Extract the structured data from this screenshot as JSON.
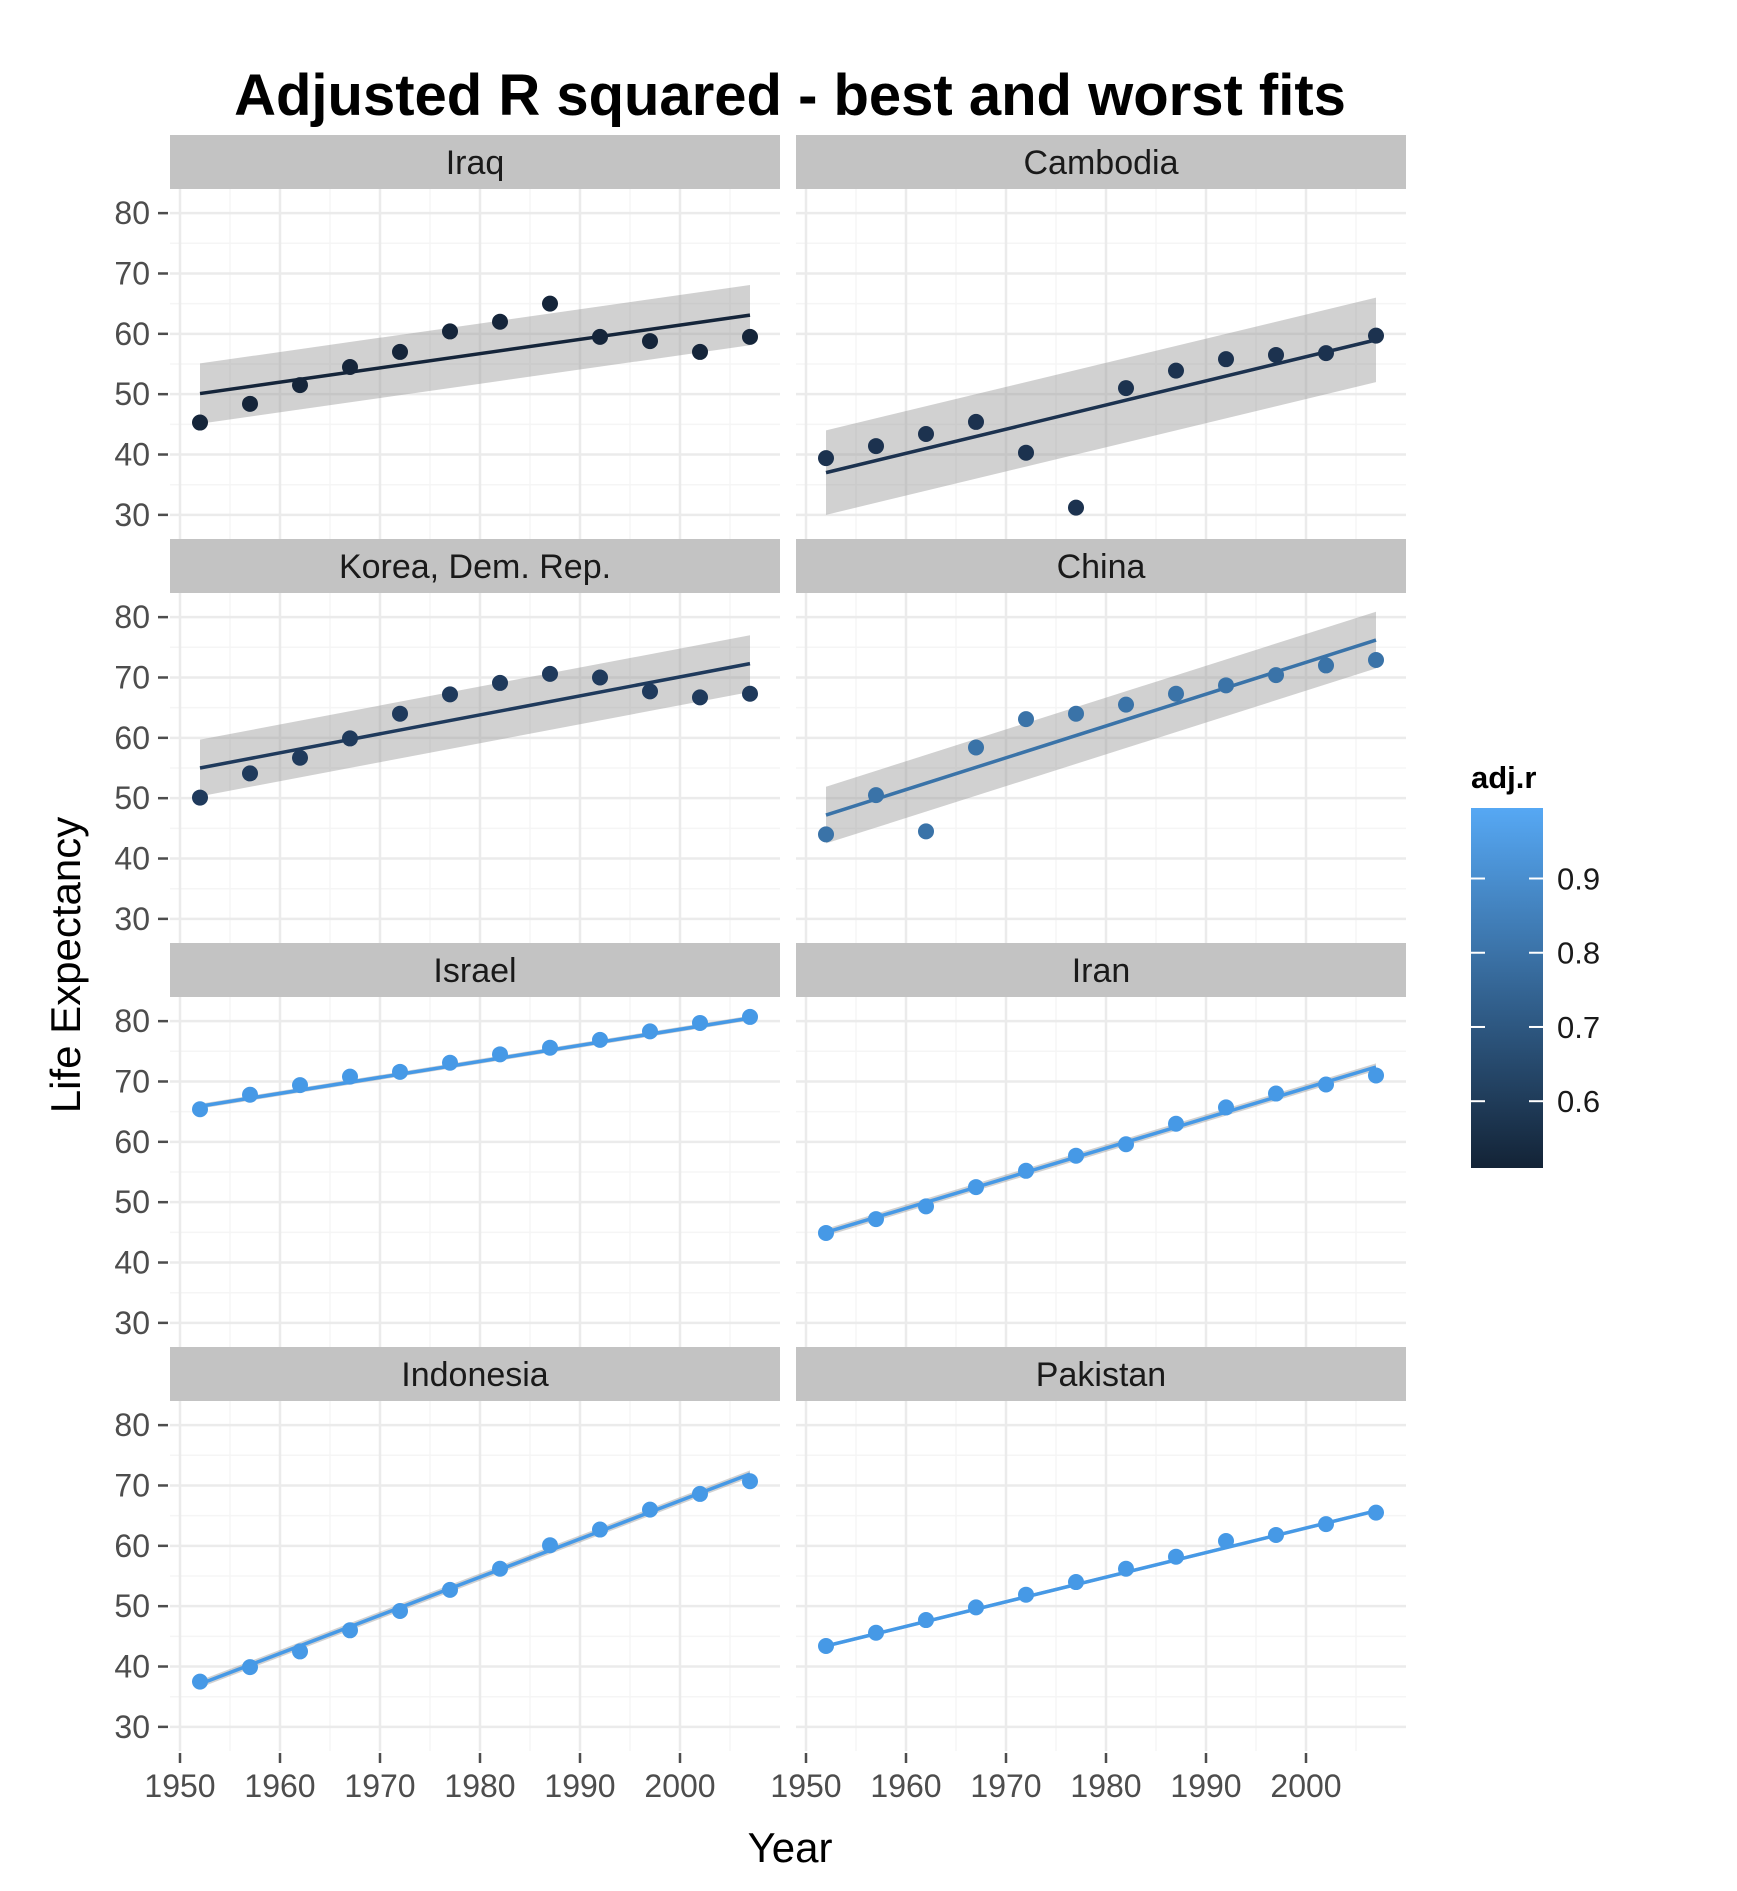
{
  "chart_data": {
    "type": "scatter",
    "title": "Adjusted R squared - best and worst fits",
    "xlabel": "Year",
    "ylabel": "Life Expectancy",
    "xlim": [
      1949,
      2010
    ],
    "ylim": [
      26,
      84
    ],
    "x_ticks": [
      1950,
      1960,
      1970,
      1980,
      1990,
      2000
    ],
    "y_ticks": [
      30,
      40,
      50,
      60,
      70,
      80
    ],
    "grid": true,
    "facets": "4 rows x 2 columns",
    "overlays": [
      "linear fit line",
      "confidence band"
    ],
    "x": [
      1952,
      1957,
      1962,
      1967,
      1972,
      1977,
      1982,
      1987,
      1992,
      1997,
      2002,
      2007
    ],
    "series": [
      {
        "name": "Iraq",
        "adj_r": 0.55,
        "color": "#15253a",
        "values": [
          45.3,
          48.4,
          51.5,
          54.5,
          57.0,
          60.4,
          62.0,
          65.0,
          59.5,
          58.8,
          57.0,
          59.5
        ],
        "fit": [
          50.1,
          63.1
        ],
        "band": [
          [
            55.1,
            45.1
          ],
          [
            68.1,
            58.1
          ]
        ]
      },
      {
        "name": "Cambodia",
        "adj_r": 0.6,
        "color": "#1c324f",
        "values": [
          39.4,
          41.4,
          43.4,
          45.4,
          40.3,
          31.2,
          51.0,
          53.9,
          55.8,
          56.5,
          56.8,
          59.7
        ],
        "fit": [
          37.0,
          59.0
        ],
        "band": [
          [
            44.0,
            30.0
          ],
          [
            66.0,
            52.0
          ]
        ]
      },
      {
        "name": "Korea, Dem. Rep.",
        "adj_r": 0.65,
        "color": "#1f3a5c",
        "values": [
          50.1,
          54.1,
          56.7,
          59.9,
          64.0,
          67.2,
          69.1,
          70.6,
          70.0,
          67.7,
          66.7,
          67.3
        ],
        "fit": [
          55.0,
          72.3
        ],
        "band": [
          [
            59.7,
            50.3
          ],
          [
            77.0,
            67.6
          ]
        ]
      },
      {
        "name": "China",
        "adj_r": 0.8,
        "color": "#3a73a8",
        "values": [
          44.0,
          50.5,
          44.5,
          58.4,
          63.1,
          64.0,
          65.5,
          67.3,
          68.7,
          70.4,
          72.0,
          72.9
        ],
        "fit": [
          47.2,
          76.2
        ],
        "band": [
          [
            51.9,
            42.5
          ],
          [
            80.9,
            71.5
          ]
        ]
      },
      {
        "name": "Israel",
        "adj_r": 0.99,
        "color": "#4699e6",
        "values": [
          65.4,
          67.8,
          69.4,
          70.8,
          71.6,
          73.1,
          74.5,
          75.6,
          76.9,
          78.3,
          79.7,
          80.7
        ],
        "fit": [
          65.9,
          80.5
        ],
        "band": [
          [
            66.3,
            65.5
          ],
          [
            80.9,
            80.1
          ]
        ]
      },
      {
        "name": "Iran",
        "adj_r": 0.99,
        "color": "#4699e6",
        "values": [
          44.9,
          47.2,
          49.3,
          52.5,
          55.2,
          57.7,
          59.6,
          63.0,
          65.7,
          68.0,
          69.5,
          71.0
        ],
        "fit": [
          45.0,
          72.4
        ],
        "band": [
          [
            45.6,
            44.4
          ],
          [
            73.0,
            71.8
          ]
        ]
      },
      {
        "name": "Indonesia",
        "adj_r": 0.99,
        "color": "#4699e6",
        "values": [
          37.5,
          39.9,
          42.5,
          46.0,
          49.2,
          52.7,
          56.2,
          60.1,
          62.7,
          66.0,
          68.6,
          70.7
        ],
        "fit": [
          37.1,
          71.9
        ],
        "band": [
          [
            37.7,
            36.5
          ],
          [
            72.5,
            71.3
          ]
        ]
      },
      {
        "name": "Pakistan",
        "adj_r": 0.99,
        "color": "#4699e6",
        "values": [
          43.4,
          45.6,
          47.7,
          49.8,
          51.9,
          54.0,
          56.2,
          58.2,
          60.8,
          61.8,
          63.6,
          65.5
        ],
        "fit": [
          43.4,
          65.8
        ],
        "band": [
          [
            43.7,
            43.1
          ],
          [
            66.1,
            65.5
          ]
        ]
      }
    ],
    "legend": {
      "title": "adj.r",
      "position": "right",
      "type": "color gradient",
      "range": [
        0.51,
        0.995
      ],
      "ticks": [
        "0.6",
        "0.7",
        "0.8",
        "0.9"
      ],
      "tick_values": [
        0.6,
        0.7,
        0.8,
        0.9
      ],
      "color_low": "#132336",
      "color_high": "#56a8f4"
    }
  }
}
